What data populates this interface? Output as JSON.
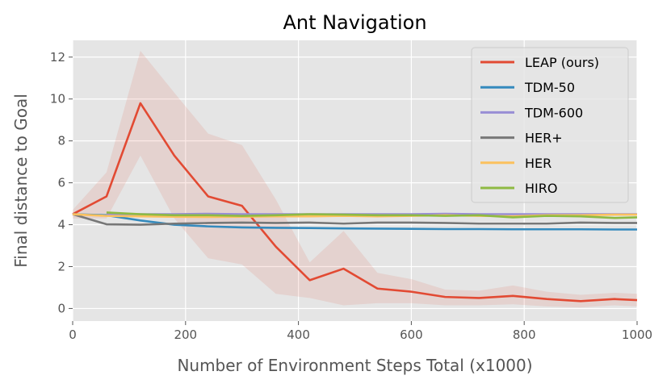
{
  "chart_data": {
    "type": "line",
    "title": "Ant Navigation",
    "xlabel": "Number of Environment Steps Total (x1000)",
    "ylabel": "Final distance to Goal",
    "xlim": [
      0,
      1000
    ],
    "ylim": [
      -0.6,
      12.8
    ],
    "xticks": [
      0,
      200,
      400,
      600,
      800,
      1000
    ],
    "yticks": [
      0,
      2,
      4,
      6,
      8,
      10,
      12
    ],
    "grid": true,
    "legend_position": "top-right",
    "series": [
      {
        "name": "LEAP (ours)",
        "color": "#e24a33",
        "x": [
          0,
          60,
          120,
          180,
          240,
          300,
          360,
          420,
          480,
          540,
          600,
          660,
          720,
          780,
          840,
          900,
          960,
          1000
        ],
        "y": [
          4.5,
          5.35,
          9.8,
          7.3,
          5.35,
          4.9,
          2.95,
          1.35,
          1.9,
          0.95,
          0.8,
          0.55,
          0.5,
          0.6,
          0.45,
          0.35,
          0.45,
          0.4
        ],
        "band_upper": [
          4.7,
          6.5,
          12.3,
          10.3,
          8.35,
          7.8,
          5.2,
          2.2,
          3.7,
          1.7,
          1.4,
          0.9,
          0.85,
          1.1,
          0.8,
          0.65,
          0.75,
          0.7
        ],
        "band_lower": [
          4.3,
          4.3,
          7.3,
          4.3,
          2.4,
          2.1,
          0.7,
          0.5,
          0.15,
          0.25,
          0.25,
          0.15,
          0.15,
          0.2,
          0.1,
          0.05,
          0.15,
          0.1
        ]
      },
      {
        "name": "TDM-50",
        "color": "#348abd",
        "x": [
          0,
          60,
          120,
          180,
          240,
          300,
          360,
          420,
          480,
          540,
          600,
          660,
          720,
          780,
          840,
          900,
          960,
          1000
        ],
        "y": [
          4.5,
          4.45,
          4.2,
          4.0,
          3.92,
          3.87,
          3.85,
          3.84,
          3.82,
          3.81,
          3.8,
          3.79,
          3.79,
          3.78,
          3.78,
          3.78,
          3.77,
          3.77
        ]
      },
      {
        "name": "TDM-600",
        "color": "#988ed5",
        "x": [
          60,
          120,
          180,
          240,
          300,
          360,
          420,
          480,
          540,
          600,
          660,
          720,
          780,
          840,
          900,
          960,
          1000
        ],
        "y": [
          4.5,
          4.5,
          4.5,
          4.52,
          4.5,
          4.5,
          4.5,
          4.5,
          4.5,
          4.5,
          4.52,
          4.5,
          4.5,
          4.5,
          4.5,
          4.5,
          4.5
        ]
      },
      {
        "name": "HER+",
        "color": "#777777",
        "x": [
          0,
          60,
          120,
          180,
          240,
          300,
          360,
          420,
          480,
          540,
          600,
          660,
          720,
          780,
          840,
          900,
          960,
          1000
        ],
        "y": [
          4.5,
          4.02,
          4.0,
          4.05,
          4.08,
          4.1,
          4.08,
          4.1,
          4.05,
          4.1,
          4.1,
          4.08,
          4.05,
          4.05,
          4.05,
          4.1,
          4.08,
          4.08
        ]
      },
      {
        "name": "HER",
        "color": "#fbc15e",
        "x": [
          0,
          60,
          120,
          180,
          240,
          300,
          360,
          420,
          480,
          540,
          600,
          660,
          720,
          780,
          840,
          900,
          960,
          1000
        ],
        "y": [
          4.5,
          4.42,
          4.4,
          4.38,
          4.37,
          4.38,
          4.4,
          4.4,
          4.42,
          4.4,
          4.42,
          4.45,
          4.42,
          4.4,
          4.45,
          4.45,
          4.48,
          4.48
        ]
      },
      {
        "name": "HIRO",
        "color": "#8eba42",
        "x": [
          60,
          120,
          180,
          240,
          300,
          360,
          420,
          480,
          540,
          600,
          660,
          720,
          780,
          840,
          900,
          960,
          1000
        ],
        "y": [
          4.58,
          4.5,
          4.45,
          4.45,
          4.42,
          4.45,
          4.5,
          4.48,
          4.45,
          4.45,
          4.42,
          4.45,
          4.35,
          4.42,
          4.4,
          4.32,
          4.35
        ]
      }
    ]
  }
}
